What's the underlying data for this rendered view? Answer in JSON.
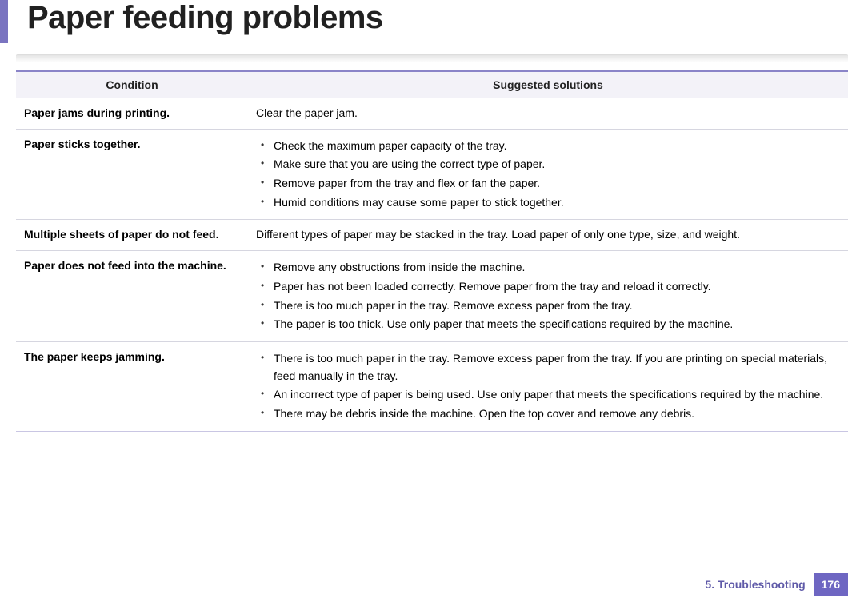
{
  "colors": {
    "accent": "#7a74c0",
    "header_bg": "#f3f2f8",
    "header_border_top": "#8a84c8",
    "row_border": "#d6d6e0",
    "chapter_text": "#5f5aa8",
    "page_bg": "#6e66c2",
    "page_text": "#ffffff"
  },
  "title": "Paper feeding problems",
  "table": {
    "headers": {
      "condition": "Condition",
      "solutions": "Suggested solutions"
    },
    "rows": [
      {
        "condition": "Paper jams during printing.",
        "solutions_text": "Clear the paper jam.",
        "solutions_list": []
      },
      {
        "condition": "Paper sticks together.",
        "solutions_text": "",
        "solutions_list": [
          "Check the maximum paper capacity of the tray.",
          "Make sure that you are using the correct type of paper.",
          "Remove paper from the tray and flex or fan the paper.",
          "Humid conditions may cause some paper to stick together."
        ]
      },
      {
        "condition": "Multiple sheets of paper do not feed.",
        "solutions_text": "Different types of paper may be stacked in the tray. Load paper of only one type, size, and weight.",
        "solutions_list": []
      },
      {
        "condition": "Paper does not feed into the machine.",
        "solutions_text": "",
        "solutions_list": [
          "Remove any obstructions from inside the machine.",
          "Paper has not been loaded correctly. Remove paper from the tray and reload it correctly.",
          "There is too much paper in the tray. Remove excess paper from the tray.",
          "The paper is too thick. Use only paper that meets the specifications required by the machine."
        ]
      },
      {
        "condition": "The paper keeps jamming.",
        "solutions_text": "",
        "solutions_list": [
          "There is too much paper in the tray. Remove excess paper from the tray. If you are printing on special materials, feed manually in the tray.",
          "An incorrect type of paper is being used. Use only paper that meets the specifications required by the machine.",
          "There may be debris inside the machine. Open the top cover and remove any debris."
        ]
      }
    ]
  },
  "footer": {
    "chapter": "5.  Troubleshooting",
    "page": "176"
  }
}
